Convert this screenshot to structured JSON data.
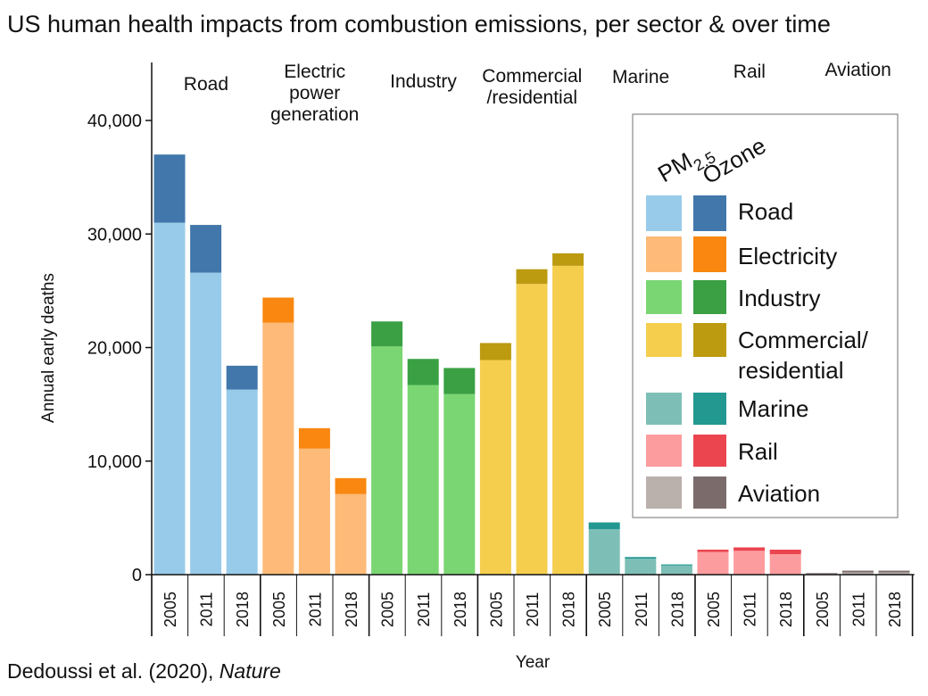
{
  "chart_data": {
    "type": "bar",
    "stacked": true,
    "title": "US human health impacts from combustion emissions, per sector & over time",
    "ylabel": "Annual early deaths",
    "xlabel": "Year",
    "ylim": [
      0,
      45000
    ],
    "yticks": [
      0,
      10000,
      20000,
      30000,
      40000
    ],
    "ytick_labels": [
      "0",
      "10,000",
      "20,000",
      "30,000",
      "40,000"
    ],
    "credit": {
      "authors": "Dedoussi et al. (2020), ",
      "journal": "Nature"
    },
    "legend": {
      "header_pm": "PM",
      "header_pm_sub": "2.5",
      "header_ozone": "Ozone",
      "placement": "right",
      "entries": [
        "Road",
        "Electricity",
        "Industry",
        "Commercial/",
        "residential",
        "Marine",
        "Rail",
        "Aviation"
      ]
    },
    "sectors": [
      {
        "name": "Road",
        "label_lines": [
          "Road"
        ],
        "legend": "Road",
        "pm_color": "#98CBE9",
        "ozone_color": "#4177AB",
        "years": [
          "2005",
          "2011",
          "2018"
        ],
        "pm25": [
          31000,
          26600,
          16300
        ],
        "ozone": [
          6000,
          4200,
          2100
        ]
      },
      {
        "name": "Electric power generation",
        "label_lines": [
          "Electric",
          "power",
          "generation"
        ],
        "legend": "Electricity",
        "pm_color": "#FDBA78",
        "ozone_color": "#F98710",
        "years": [
          "2005",
          "2011",
          "2018"
        ],
        "pm25": [
          22200,
          11100,
          7100
        ],
        "ozone": [
          2200,
          1800,
          1400
        ]
      },
      {
        "name": "Industry",
        "label_lines": [
          "Industry"
        ],
        "legend": "Industry",
        "pm_color": "#7AD672",
        "ozone_color": "#3AA043",
        "years": [
          "2005",
          "2011",
          "2018"
        ],
        "pm25": [
          20100,
          16700,
          15900
        ],
        "ozone": [
          2200,
          2300,
          2300
        ]
      },
      {
        "name": "Commercial/residential",
        "label_lines": [
          "Commercial",
          "/residential"
        ],
        "legend": "Commercial/residential",
        "pm_color": "#F5CE4E",
        "ozone_color": "#BC9B10",
        "years": [
          "2005",
          "2011",
          "2018"
        ],
        "pm25": [
          18900,
          25600,
          27200
        ],
        "ozone": [
          1500,
          1300,
          1100
        ]
      },
      {
        "name": "Marine",
        "label_lines": [
          "Marine"
        ],
        "legend": "Marine",
        "pm_color": "#7DBFB6",
        "ozone_color": "#239891",
        "years": [
          "2005",
          "2011",
          "2018"
        ],
        "pm25": [
          4000,
          1400,
          800
        ],
        "ozone": [
          600,
          150,
          100
        ]
      },
      {
        "name": "Rail",
        "label_lines": [
          "Rail"
        ],
        "legend": "Rail",
        "pm_color": "#FD9C9E",
        "ozone_color": "#EB4550",
        "years": [
          "2005",
          "2011",
          "2018"
        ],
        "pm25": [
          2000,
          2100,
          1800
        ],
        "ozone": [
          200,
          300,
          400
        ]
      },
      {
        "name": "Aviation",
        "label_lines": [
          "Aviation"
        ],
        "legend": "Aviation",
        "pm_color": "#BAB0AC",
        "ozone_color": "#7B6C6B",
        "years": [
          "2005",
          "2011",
          "2018"
        ],
        "pm25": [
          100,
          200,
          200
        ],
        "ozone": [
          50,
          150,
          150
        ]
      }
    ]
  }
}
